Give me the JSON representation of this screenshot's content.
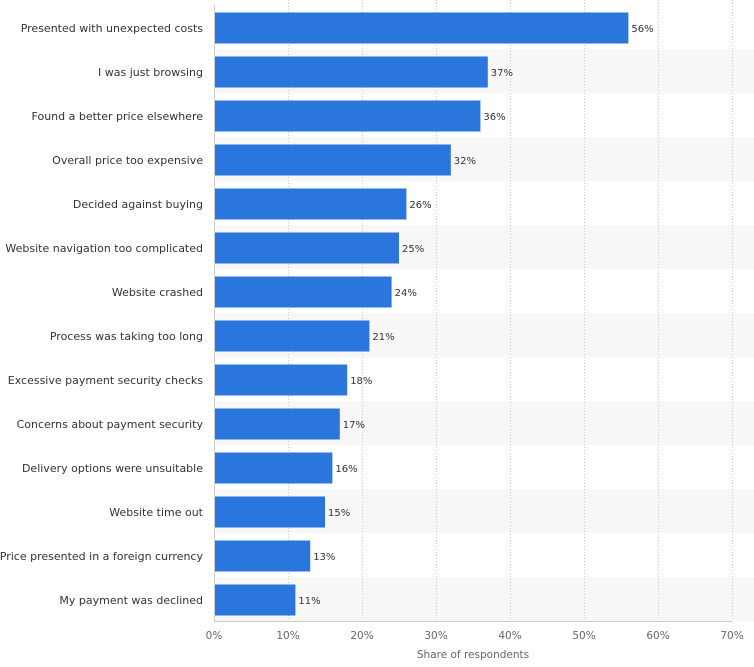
{
  "chart_data": {
    "type": "bar",
    "orientation": "horizontal",
    "categories": [
      "Presented with unexpected costs",
      "I was just browsing",
      "Found a better price elsewhere",
      "Overall price too expensive",
      "Decided against buying",
      "Website navigation too complicated",
      "Website crashed",
      "Process was taking too long",
      "Excessive payment security checks",
      "Concerns about payment security",
      "Delivery options were unsuitable",
      "Website time out",
      "Price presented in a foreign currency",
      "My payment was declined"
    ],
    "values": [
      56,
      37,
      36,
      32,
      26,
      25,
      24,
      21,
      18,
      17,
      16,
      15,
      13,
      11
    ],
    "value_labels": [
      "56%",
      "37%",
      "36%",
      "32%",
      "26%",
      "25%",
      "24%",
      "21%",
      "18%",
      "17%",
      "16%",
      "15%",
      "13%",
      "11%"
    ],
    "xlabel": "Share of respondents",
    "ylabel": "",
    "xlim": [
      0,
      70
    ],
    "x_ticks": [
      0,
      10,
      20,
      30,
      40,
      50,
      60,
      70
    ],
    "x_tick_labels": [
      "0%",
      "10%",
      "20%",
      "30%",
      "40%",
      "50%",
      "60%",
      "70%"
    ],
    "grid": "vertical dotted",
    "bar_color": "#2a76dd",
    "band_color": "#f7f7f7",
    "label_color": "#333333",
    "axis_label_color": "#666666"
  }
}
